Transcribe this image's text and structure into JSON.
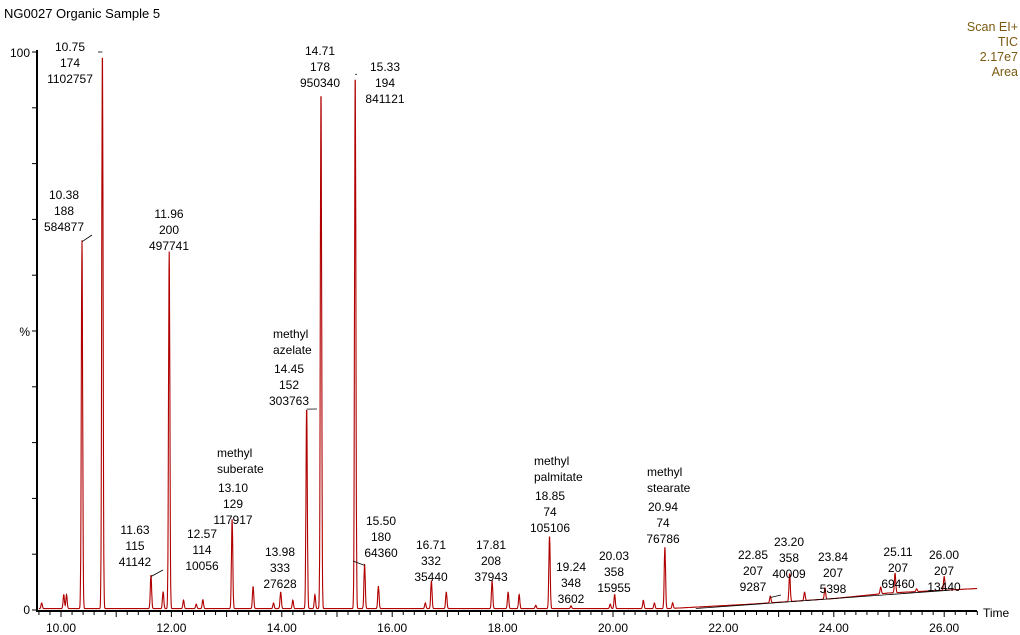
{
  "chart_data": {
    "type": "line",
    "title": "NG0027 Organic Sample 5",
    "info": [
      "Scan EI+",
      "TIC",
      "2.17e7",
      "Area"
    ],
    "xlabel": "Time",
    "ylabel": "%",
    "xlim": [
      9.6,
      26.6
    ],
    "ylim": [
      0,
      100
    ],
    "x_ticks": [
      "10.00",
      "12.00",
      "14.00",
      "16.00",
      "18.00",
      "20.00",
      "22.00",
      "24.00",
      "26.00"
    ],
    "y_ticks": [
      "0",
      "%",
      "100"
    ],
    "grid": false,
    "line_color": "#b00000",
    "peaks": [
      {
        "rt": "10.38",
        "mz": "188",
        "area": "584877",
        "height": 66
      },
      {
        "rt": "10.75",
        "mz": "174",
        "area": "1102757",
        "height": 100
      },
      {
        "rt": "11.63",
        "mz": "115",
        "area": "41142",
        "height": 6
      },
      {
        "rt": "11.96",
        "mz": "200",
        "area": "497741",
        "height": 64
      },
      {
        "rt": "12.57",
        "mz": "114",
        "area": "10056",
        "height": 1.6
      },
      {
        "rt": "13.10",
        "mz": "129",
        "area": "117917",
        "height": 16,
        "name": [
          "methyl",
          "suberate"
        ]
      },
      {
        "rt": "13.98",
        "mz": "333",
        "area": "27628",
        "height": 3
      },
      {
        "rt": "14.45",
        "mz": "152",
        "area": "303763",
        "height": 36,
        "name": [
          "methyl",
          "azelate"
        ]
      },
      {
        "rt": "14.71",
        "mz": "178",
        "area": "950340",
        "height": 93
      },
      {
        "rt": "15.33",
        "mz": "194",
        "area": "841121",
        "height": 96
      },
      {
        "rt": "15.50",
        "mz": "180",
        "area": "64360",
        "height": 8
      },
      {
        "rt": "16.71",
        "mz": "332",
        "area": "35440",
        "height": 5
      },
      {
        "rt": "17.81",
        "mz": "208",
        "area": "37943",
        "height": 5
      },
      {
        "rt": "18.85",
        "mz": "74",
        "area": "105106",
        "height": 13,
        "name": [
          "methyl",
          "palmitate"
        ]
      },
      {
        "rt": "19.24",
        "mz": "348",
        "area": "3602",
        "height": 0.5
      },
      {
        "rt": "20.03",
        "mz": "358",
        "area": "15955",
        "height": 2.5
      },
      {
        "rt": "20.94",
        "mz": "74",
        "area": "76786",
        "height": 11,
        "name": [
          "methyl",
          "stearate"
        ]
      },
      {
        "rt": "22.85",
        "mz": "207",
        "area": "9287",
        "height": 1.2
      },
      {
        "rt": "23.20",
        "mz": "358",
        "area": "40009",
        "height": 5
      },
      {
        "rt": "23.84",
        "mz": "207",
        "area": "5398",
        "height": 2
      },
      {
        "rt": "25.11",
        "mz": "207",
        "area": "69460",
        "height": 3.5
      },
      {
        "rt": "26.00",
        "mz": "207",
        "area": "13440",
        "height": 2.5
      }
    ],
    "minor_peaks": [
      {
        "rt": 9.65,
        "height": 1
      },
      {
        "rt": 10.05,
        "height": 2.5
      },
      {
        "rt": 10.1,
        "height": 2.5
      },
      {
        "rt": 11.85,
        "height": 3
      },
      {
        "rt": 12.22,
        "height": 1.5
      },
      {
        "rt": 12.45,
        "height": 0.8
      },
      {
        "rt": 13.48,
        "height": 4
      },
      {
        "rt": 13.85,
        "height": 1
      },
      {
        "rt": 14.2,
        "height": 1.5
      },
      {
        "rt": 14.6,
        "height": 2.5
      },
      {
        "rt": 15.75,
        "height": 4
      },
      {
        "rt": 16.6,
        "height": 1
      },
      {
        "rt": 16.98,
        "height": 3
      },
      {
        "rt": 18.1,
        "height": 3
      },
      {
        "rt": 18.3,
        "height": 2.5
      },
      {
        "rt": 18.6,
        "height": 0.6
      },
      {
        "rt": 19.95,
        "height": 0.8
      },
      {
        "rt": 20.55,
        "height": 1.5
      },
      {
        "rt": 20.75,
        "height": 1
      },
      {
        "rt": 21.08,
        "height": 1
      },
      {
        "rt": 23.47,
        "height": 1.5
      },
      {
        "rt": 24.85,
        "height": 1.2
      },
      {
        "rt": 25.5,
        "height": 0.5
      }
    ],
    "baseline_drift": [
      [
        21.0,
        0
      ],
      [
        22.5,
        0.8
      ],
      [
        24.0,
        1.8
      ],
      [
        25.0,
        2.8
      ],
      [
        26.6,
        3.6
      ]
    ]
  }
}
